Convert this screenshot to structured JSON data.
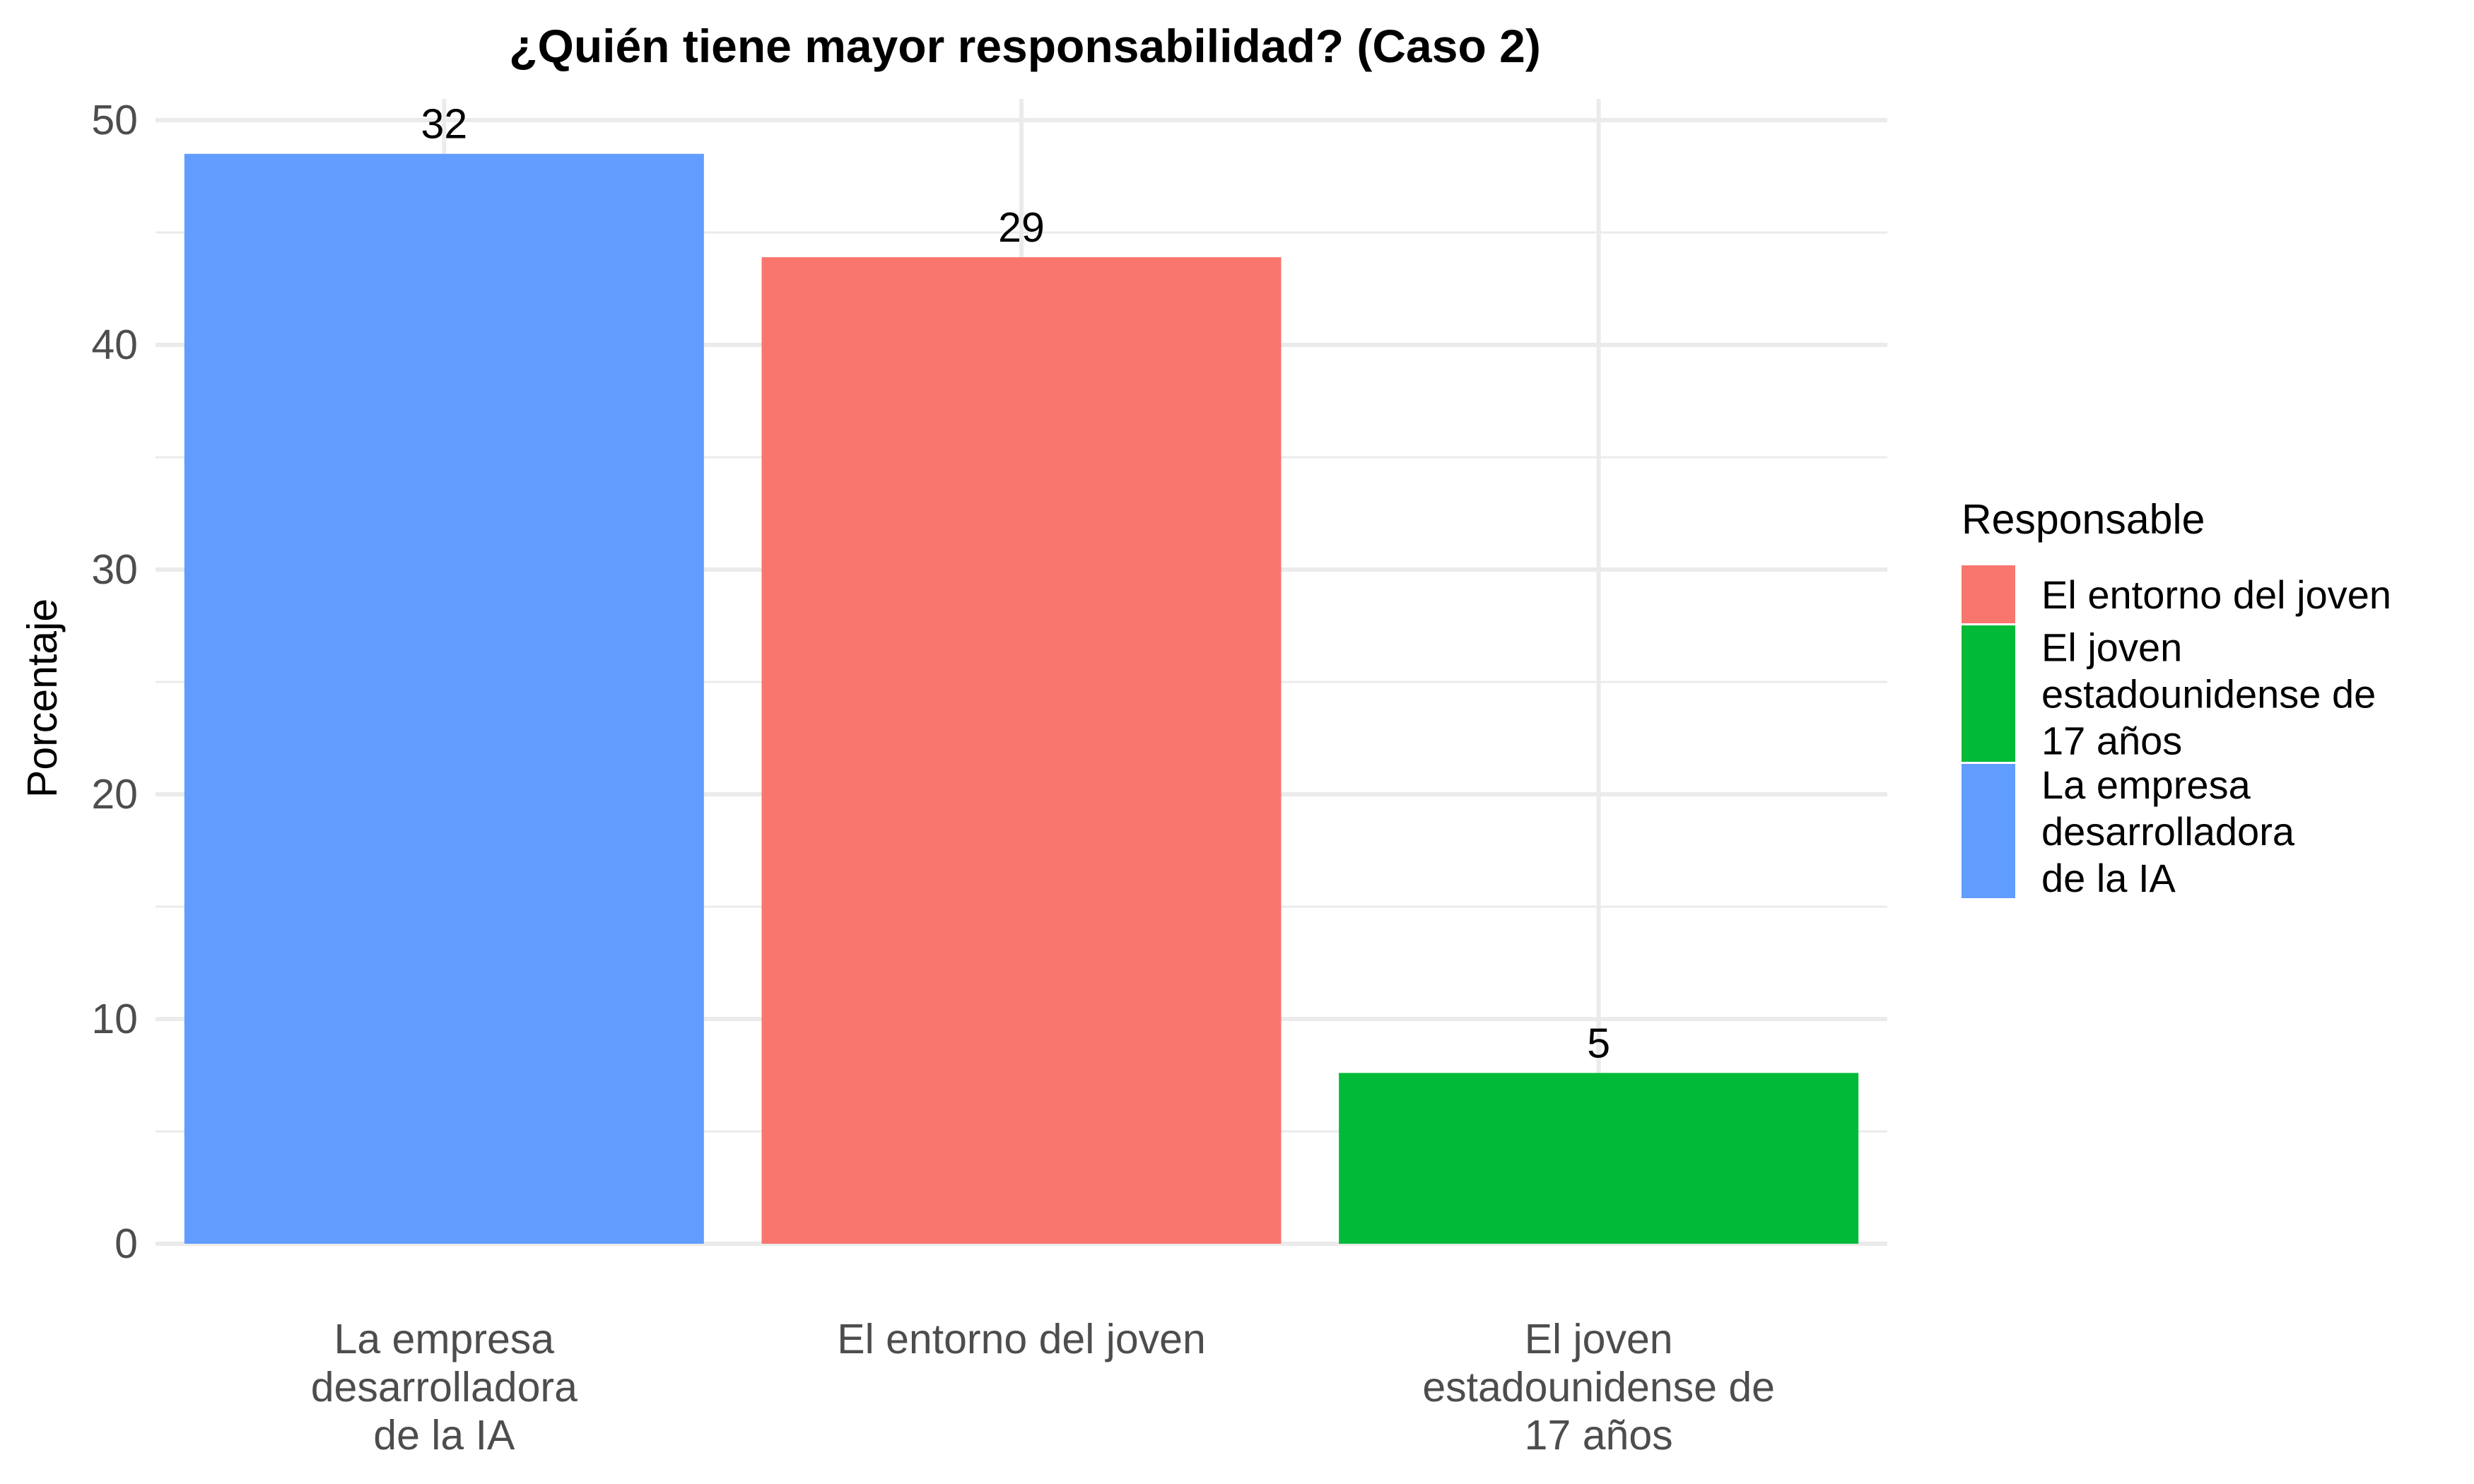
{
  "chart_data": {
    "type": "bar",
    "title": "¿Quién tiene mayor responsabilidad? (Caso 2)",
    "xlabel": "",
    "ylabel": "Porcentaje",
    "ylim": [
      0,
      50
    ],
    "yticks": [
      "0",
      "10",
      "20",
      "30",
      "40",
      "50"
    ],
    "ytick_values": [
      0,
      10,
      20,
      30,
      40,
      50
    ],
    "grid": true,
    "categories": [
      "La empresa desarrolladora de la IA",
      "El entorno del joven",
      "El joven estadounidense de 17 años"
    ],
    "category_lines": [
      [
        "La empresa",
        "desarrolladora",
        "de la IA"
      ],
      [
        "El entorno del joven"
      ],
      [
        "El joven",
        "estadounidense de",
        "17 años"
      ]
    ],
    "values": [
      48.5,
      43.9,
      7.6
    ],
    "data_labels": [
      "32",
      "29",
      "5"
    ],
    "colors": [
      "#619cff",
      "#f8766d",
      "#00ba38"
    ],
    "legend": {
      "title": "Responsable",
      "placement": "right",
      "items": [
        {
          "lines": [
            "El entorno del joven"
          ],
          "color": "#f8766d"
        },
        {
          "lines": [
            "El joven",
            "estadounidense de",
            "17 años"
          ],
          "color": "#00ba38"
        },
        {
          "lines": [
            "La empresa",
            "desarrolladora",
            "de la IA"
          ],
          "color": "#619cff"
        }
      ]
    }
  }
}
